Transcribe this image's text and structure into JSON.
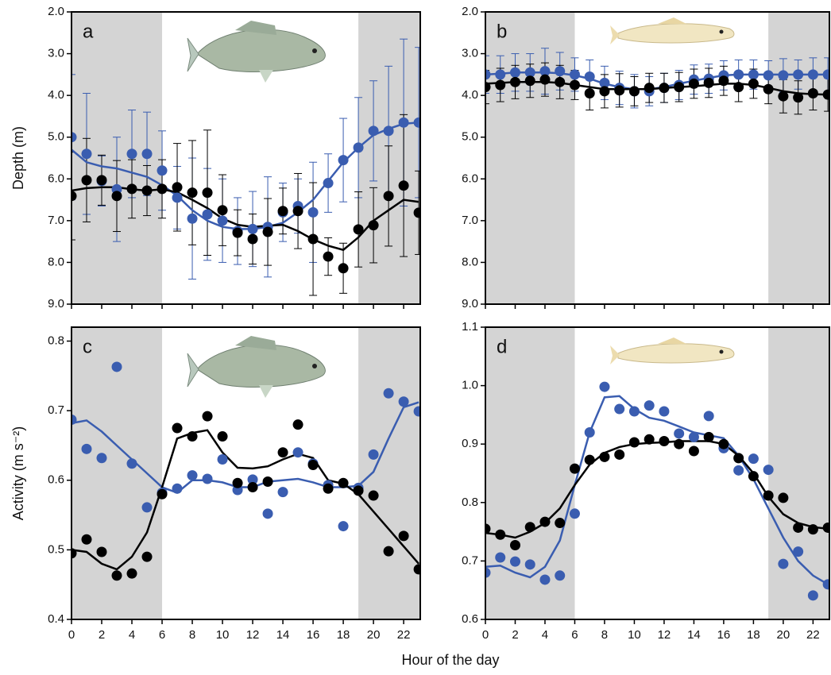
{
  "chart_data": [
    {
      "type": "scatter",
      "label": "a",
      "y_label": "Depth (m)",
      "x": [
        0,
        1,
        2,
        3,
        4,
        5,
        6,
        7,
        8,
        9,
        10,
        11,
        12,
        13,
        14,
        15,
        16,
        17,
        18,
        19,
        20,
        21,
        22,
        23
      ],
      "xlim": [
        0,
        23.1
      ],
      "xticks": [
        0,
        2,
        4,
        6,
        8,
        10,
        12,
        14,
        16,
        18,
        20,
        22
      ],
      "show_xtick_labels": false,
      "ylim": [
        9,
        2
      ],
      "yticks": [
        {
          "value": 2,
          "label": "2.0"
        },
        {
          "value": 3,
          "label": "3.0"
        },
        {
          "value": 4,
          "label": "4.0"
        },
        {
          "value": 5,
          "label": "5.0"
        },
        {
          "value": 6,
          "label": "6.0"
        },
        {
          "value": 7,
          "label": "7.0"
        },
        {
          "value": 8,
          "label": "8.0"
        },
        {
          "value": 9,
          "label": "9.0"
        }
      ],
      "shaded": [
        [
          0,
          6
        ],
        [
          19,
          23.1
        ]
      ],
      "shade_color": "#d4d4d4",
      "series": [
        {
          "color": "#3a5db0",
          "values": [
            5.0,
            5.4,
            6.05,
            6.25,
            5.4,
            5.4,
            5.8,
            6.45,
            6.95,
            6.85,
            7.0,
            7.25,
            7.2,
            7.15,
            6.8,
            6.65,
            6.8,
            6.1,
            5.55,
            5.25,
            4.85,
            4.85,
            4.65,
            4.65
          ],
          "errors": [
            1.5,
            1.45,
            0.6,
            1.25,
            1.05,
            1.0,
            0.95,
            0.75,
            1.45,
            1.1,
            1.0,
            0.8,
            0.9,
            1.2,
            0.7,
            0.65,
            1.2,
            0.7,
            1.0,
            1.2,
            1.2,
            1.55,
            2.0,
            1.8
          ],
          "smooth": [
            5.3,
            5.6,
            5.7,
            5.75,
            5.85,
            5.95,
            6.15,
            6.4,
            6.75,
            7.0,
            7.15,
            7.2,
            7.2,
            7.15,
            7.05,
            6.8,
            6.5,
            6.05,
            5.6,
            5.25,
            4.95,
            4.8,
            4.68,
            4.65
          ]
        },
        {
          "color": "#000000",
          "values": [
            6.41,
            6.03,
            6.03,
            6.41,
            6.24,
            6.28,
            6.24,
            6.2,
            6.33,
            6.33,
            6.75,
            7.29,
            7.44,
            7.27,
            6.77,
            6.77,
            7.44,
            7.86,
            8.14,
            7.21,
            7.11,
            6.41,
            6.16,
            6.81
          ],
          "errors": [
            1.05,
            1.0,
            0.6,
            0.85,
            0.7,
            0.6,
            0.7,
            1.05,
            1.25,
            1.5,
            0.85,
            0.55,
            0.6,
            0.8,
            0.55,
            0.9,
            1.35,
            0.45,
            0.6,
            0.9,
            0.9,
            1.2,
            1.7,
            1.0
          ],
          "smooth": [
            6.28,
            6.22,
            6.2,
            6.2,
            6.25,
            6.28,
            6.25,
            6.32,
            6.5,
            6.7,
            6.95,
            7.1,
            7.15,
            7.12,
            7.1,
            7.25,
            7.45,
            7.6,
            7.7,
            7.4,
            7.0,
            6.75,
            6.5,
            6.55
          ]
        }
      ]
    },
    {
      "type": "scatter",
      "label": "b",
      "x": [
        0,
        1,
        2,
        3,
        4,
        5,
        6,
        7,
        8,
        9,
        10,
        11,
        12,
        13,
        14,
        15,
        16,
        17,
        18,
        19,
        20,
        21,
        22,
        23
      ],
      "xlim": [
        0,
        23.1
      ],
      "xticks": [
        0,
        2,
        4,
        6,
        8,
        10,
        12,
        14,
        16,
        18,
        20,
        22
      ],
      "show_xtick_labels": false,
      "ylim": [
        9,
        2
      ],
      "yticks": [
        {
          "value": 2,
          "label": "2.0"
        },
        {
          "value": 3,
          "label": "3.0"
        },
        {
          "value": 4,
          "label": "4.0"
        },
        {
          "value": 5,
          "label": "5.0"
        },
        {
          "value": 6,
          "label": "6.0"
        },
        {
          "value": 7,
          "label": "7.0"
        },
        {
          "value": 8,
          "label": "8.0"
        },
        {
          "value": 9,
          "label": "9.0"
        }
      ],
      "shaded": [
        [
          0,
          6
        ],
        [
          19,
          23.1
        ]
      ],
      "shade_color": "#d4d4d4",
      "series": [
        {
          "color": "#3a5db0",
          "values": [
            3.5,
            3.5,
            3.45,
            3.45,
            3.42,
            3.42,
            3.5,
            3.55,
            3.7,
            3.82,
            3.9,
            3.9,
            3.82,
            3.75,
            3.62,
            3.6,
            3.52,
            3.5,
            3.5,
            3.52,
            3.52,
            3.5,
            3.5,
            3.5
          ],
          "errors": [
            0.45,
            0.45,
            0.45,
            0.45,
            0.55,
            0.45,
            0.4,
            0.4,
            0.4,
            0.4,
            0.4,
            0.35,
            0.35,
            0.35,
            0.35,
            0.35,
            0.35,
            0.35,
            0.35,
            0.35,
            0.4,
            0.35,
            0.4,
            0.4
          ],
          "smooth": [
            3.5,
            3.48,
            3.45,
            3.45,
            3.45,
            3.47,
            3.52,
            3.6,
            3.72,
            3.8,
            3.85,
            3.85,
            3.8,
            3.72,
            3.65,
            3.58,
            3.52,
            3.5,
            3.5,
            3.5,
            3.5,
            3.5,
            3.5,
            3.5
          ]
        },
        {
          "color": "#000000",
          "values": [
            3.8,
            3.75,
            3.68,
            3.65,
            3.62,
            3.68,
            3.75,
            3.95,
            3.9,
            3.88,
            3.9,
            3.82,
            3.82,
            3.8,
            3.72,
            3.7,
            3.65,
            3.8,
            3.72,
            3.85,
            4.02,
            4.05,
            3.95,
            3.98
          ],
          "errors": [
            0.4,
            0.4,
            0.4,
            0.4,
            0.4,
            0.4,
            0.35,
            0.4,
            0.4,
            0.4,
            0.35,
            0.35,
            0.35,
            0.35,
            0.35,
            0.35,
            0.35,
            0.35,
            0.35,
            0.35,
            0.4,
            0.4,
            0.4,
            0.4
          ],
          "smooth": [
            3.72,
            3.7,
            3.68,
            3.68,
            3.68,
            3.7,
            3.75,
            3.8,
            3.85,
            3.85,
            3.85,
            3.85,
            3.82,
            3.8,
            3.78,
            3.75,
            3.72,
            3.72,
            3.75,
            3.82,
            3.9,
            3.95,
            3.97,
            3.98
          ]
        }
      ]
    },
    {
      "type": "scatter",
      "label": "c",
      "y_label": "Activity (m s⁻²)",
      "x_label": "Hour of the day",
      "x": [
        0,
        1,
        2,
        3,
        4,
        5,
        6,
        7,
        8,
        9,
        10,
        11,
        12,
        13,
        14,
        15,
        16,
        17,
        18,
        19,
        20,
        21,
        22,
        23
      ],
      "xlim": [
        0,
        23.1
      ],
      "xticks": [
        0,
        2,
        4,
        6,
        8,
        10,
        12,
        14,
        16,
        18,
        20,
        22
      ],
      "show_xtick_labels": true,
      "ylim": [
        0.4,
        0.82
      ],
      "yticks": [
        0.4,
        0.5,
        0.6,
        0.7,
        0.8
      ],
      "shaded": [
        [
          0,
          6
        ],
        [
          19,
          23.1
        ]
      ],
      "shade_color": "#d4d4d4",
      "series": [
        {
          "color": "#3a5db0",
          "values": [
            0.687,
            0.645,
            0.632,
            0.763,
            0.624,
            0.561,
            0.582,
            0.588,
            0.607,
            0.602,
            0.63,
            0.586,
            0.601,
            0.552,
            0.583,
            0.64,
            0.624,
            0.593,
            0.534,
            0.589,
            0.637,
            0.725,
            0.713,
            0.699
          ],
          "smooth": [
            0.682,
            0.686,
            0.67,
            0.65,
            0.63,
            0.61,
            0.59,
            0.582,
            0.6,
            0.6,
            0.597,
            0.59,
            0.59,
            0.598,
            0.6,
            0.602,
            0.597,
            0.59,
            0.59,
            0.592,
            0.612,
            0.66,
            0.705,
            0.712
          ]
        },
        {
          "color": "#000000",
          "values": [
            0.495,
            0.515,
            0.497,
            0.463,
            0.466,
            0.49,
            0.58,
            0.675,
            0.663,
            0.692,
            0.663,
            0.596,
            0.59,
            0.598,
            0.64,
            0.68,
            0.622,
            0.588,
            0.596,
            0.585,
            0.578,
            0.498,
            0.52,
            0.472
          ],
          "smooth": [
            0.5,
            0.497,
            0.48,
            0.472,
            0.49,
            0.525,
            0.59,
            0.66,
            0.668,
            0.672,
            0.64,
            0.618,
            0.617,
            0.62,
            0.63,
            0.638,
            0.632,
            0.6,
            0.595,
            0.58,
            0.555,
            0.53,
            0.505,
            0.48
          ]
        }
      ]
    },
    {
      "type": "scatter",
      "label": "d",
      "x": [
        0,
        1,
        2,
        3,
        4,
        5,
        6,
        7,
        8,
        9,
        10,
        11,
        12,
        13,
        14,
        15,
        16,
        17,
        18,
        19,
        20,
        21,
        22,
        23
      ],
      "xlim": [
        0,
        23.1
      ],
      "xticks": [
        0,
        2,
        4,
        6,
        8,
        10,
        12,
        14,
        16,
        18,
        20,
        22
      ],
      "show_xtick_labels": true,
      "ylim": [
        0.6,
        1.1
      ],
      "yticks": [
        0.6,
        0.7,
        0.8,
        0.9,
        {
          "value": 1.0,
          "label": "1.0"
        },
        1.1
      ],
      "shaded": [
        [
          0,
          6
        ],
        [
          19,
          23.1
        ]
      ],
      "shade_color": "#d4d4d4",
      "series": [
        {
          "color": "#3a5db0",
          "values": [
            0.68,
            0.706,
            0.699,
            0.694,
            0.668,
            0.675,
            0.781,
            0.92,
            0.998,
            0.96,
            0.956,
            0.966,
            0.956,
            0.918,
            0.912,
            0.948,
            0.893,
            0.855,
            0.875,
            0.856,
            0.695,
            0.716,
            0.641,
            0.66
          ],
          "smooth": [
            0.69,
            0.692,
            0.68,
            0.672,
            0.69,
            0.735,
            0.83,
            0.92,
            0.98,
            0.982,
            0.96,
            0.945,
            0.94,
            0.93,
            0.92,
            0.915,
            0.91,
            0.88,
            0.84,
            0.79,
            0.74,
            0.7,
            0.675,
            0.66
          ]
        },
        {
          "color": "#000000",
          "values": [
            0.755,
            0.745,
            0.727,
            0.758,
            0.767,
            0.765,
            0.858,
            0.873,
            0.878,
            0.882,
            0.903,
            0.908,
            0.905,
            0.9,
            0.888,
            0.912,
            0.9,
            0.876,
            0.845,
            0.812,
            0.808,
            0.757,
            0.754,
            0.757
          ],
          "smooth": [
            0.748,
            0.745,
            0.74,
            0.75,
            0.765,
            0.79,
            0.83,
            0.865,
            0.885,
            0.895,
            0.9,
            0.902,
            0.903,
            0.905,
            0.905,
            0.905,
            0.9,
            0.88,
            0.85,
            0.81,
            0.78,
            0.765,
            0.758,
            0.755
          ]
        }
      ]
    }
  ]
}
